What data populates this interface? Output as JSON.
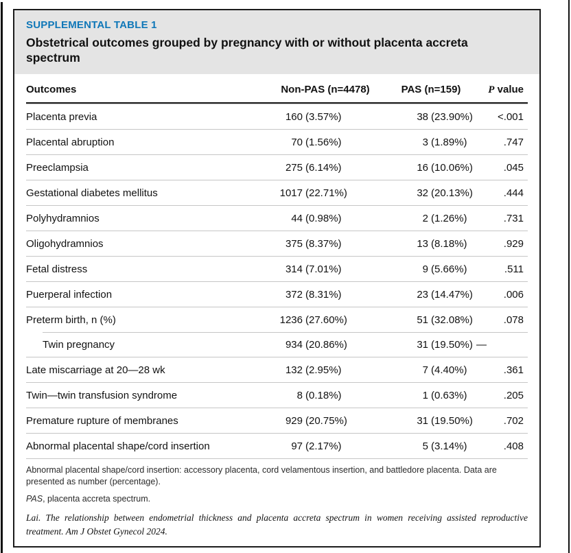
{
  "page": {
    "label": "SUPPLEMENTAL TABLE 1",
    "title": "Obstetrical outcomes grouped by pregnancy with or without placenta accreta spectrum",
    "accent_color": "#0f77b8",
    "band_background": "#e4e4e4"
  },
  "table": {
    "header": {
      "outcomes": "Outcomes",
      "non_pas": "Non-PAS (n=4478)",
      "pas": "PAS (n=159)",
      "p_italic": "P",
      "p_rest": " value"
    },
    "rows": [
      {
        "outcome": "Placenta previa",
        "non_pas_n": "160",
        "non_pas_pct": "(3.57%)",
        "pas_n": "38",
        "pas_pct": "(23.90%)",
        "p": "<.001"
      },
      {
        "outcome": "Placental abruption",
        "non_pas_n": "70",
        "non_pas_pct": "(1.56%)",
        "pas_n": "3",
        "pas_pct": "(1.89%)",
        "p": ".747"
      },
      {
        "outcome": "Preeclampsia",
        "non_pas_n": "275",
        "non_pas_pct": "(6.14%)",
        "pas_n": "16",
        "pas_pct": "(10.06%)",
        "p": ".045"
      },
      {
        "outcome": "Gestational diabetes mellitus",
        "non_pas_n": "1017",
        "non_pas_pct": "(22.71%)",
        "pas_n": "32",
        "pas_pct": "(20.13%)",
        "p": ".444"
      },
      {
        "outcome": "Polyhydramnios",
        "non_pas_n": "44",
        "non_pas_pct": "(0.98%)",
        "pas_n": "2",
        "pas_pct": "(1.26%)",
        "p": ".731"
      },
      {
        "outcome": "Oligohydramnios",
        "non_pas_n": "375",
        "non_pas_pct": "(8.37%)",
        "pas_n": "13",
        "pas_pct": "(8.18%)",
        "p": ".929"
      },
      {
        "outcome": "Fetal distress",
        "non_pas_n": "314",
        "non_pas_pct": "(7.01%)",
        "pas_n": "9",
        "pas_pct": "(5.66%)",
        "p": ".511"
      },
      {
        "outcome": "Puerperal infection",
        "non_pas_n": "372",
        "non_pas_pct": "(8.31%)",
        "pas_n": "23",
        "pas_pct": "(14.47%)",
        "p": ".006"
      },
      {
        "outcome": "Preterm birth, n (%)",
        "non_pas_n": "1236",
        "non_pas_pct": "(27.60%)",
        "pas_n": "51",
        "pas_pct": "(32.08%)",
        "p": ".078"
      },
      {
        "outcome": "Twin pregnancy",
        "indent": true,
        "non_pas_n": "934",
        "non_pas_pct": "(20.86%)",
        "pas_n": "31",
        "pas_pct": "(19.50%)",
        "p": "—"
      },
      {
        "outcome": "Late miscarriage at 20—28 wk",
        "non_pas_n": "132",
        "non_pas_pct": "(2.95%)",
        "pas_n": "7",
        "pas_pct": "(4.40%)",
        "p": ".361"
      },
      {
        "outcome": "Twin—twin transfusion syndrome",
        "non_pas_n": "8",
        "non_pas_pct": "(0.18%)",
        "pas_n": "1",
        "pas_pct": "(0.63%)",
        "p": ".205"
      },
      {
        "outcome": "Premature rupture of membranes",
        "non_pas_n": "929",
        "non_pas_pct": "(20.75%)",
        "pas_n": "31",
        "pas_pct": "(19.50%)",
        "p": ".702"
      },
      {
        "outcome": "Abnormal placental shape/cord insertion",
        "non_pas_n": "97",
        "non_pas_pct": "(2.17%)",
        "pas_n": "5",
        "pas_pct": "(3.14%)",
        "p": ".408"
      }
    ]
  },
  "footnotes": {
    "definition": "Abnormal placental shape/cord insertion: accessory placenta, cord velamentous insertion, and battledore placenta. Data are presented as number (percentage).",
    "abbr_italic": "PAS",
    "abbr_rest": ", placenta accreta spectrum.",
    "citation": "Lai. The relationship between endometrial thickness and placenta accreta spectrum in women receiving assisted reproductive treatment. Am J Obstet Gynecol 2024."
  }
}
